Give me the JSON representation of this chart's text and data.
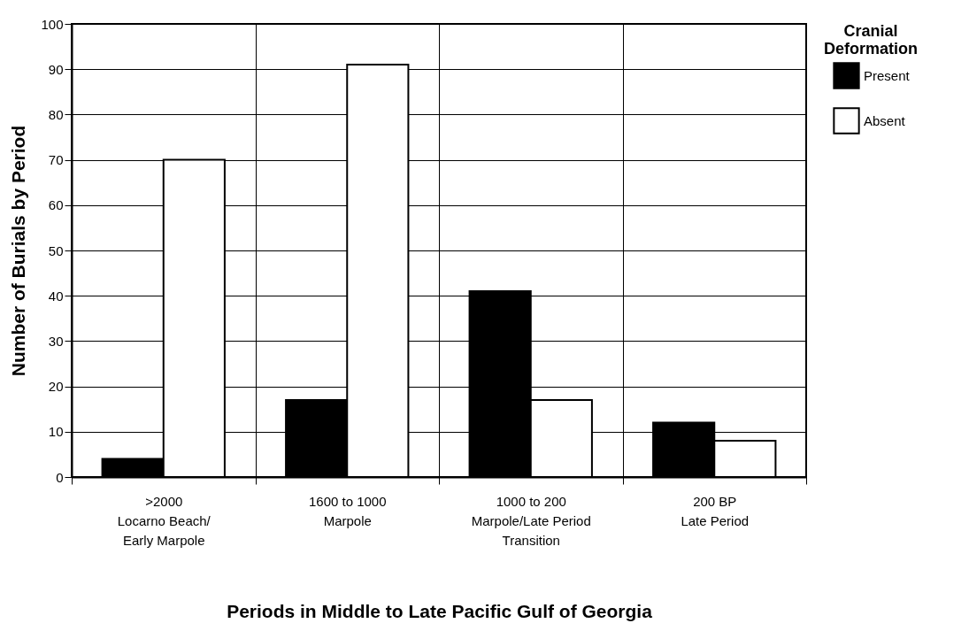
{
  "chart_data": {
    "type": "bar",
    "xlabel": "Periods in Middle to Late Pacific Gulf of Georgia",
    "ylabel": "Number of Burials by Period",
    "legend_title": "Cranial Deformation",
    "categories": [
      ">2000\n\nLocarno Beach/\nEarly Marpole",
      "1600 to 1000\n\nMarpole",
      "1000 to 200\n\nMarpole/Late Period\nTransition",
      "200 BP\n\nLate Period"
    ],
    "series": [
      {
        "name": "Present",
        "color": "#000000",
        "values": [
          4,
          17,
          41,
          12
        ]
      },
      {
        "name": "Absent",
        "color": "#ffffff",
        "values": [
          70,
          91,
          17,
          8
        ]
      }
    ],
    "ylim": [
      0,
      100
    ],
    "yticks": [
      0,
      10,
      20,
      30,
      40,
      50,
      60,
      70,
      80,
      90,
      100
    ],
    "grid": true,
    "legend": "top right"
  }
}
